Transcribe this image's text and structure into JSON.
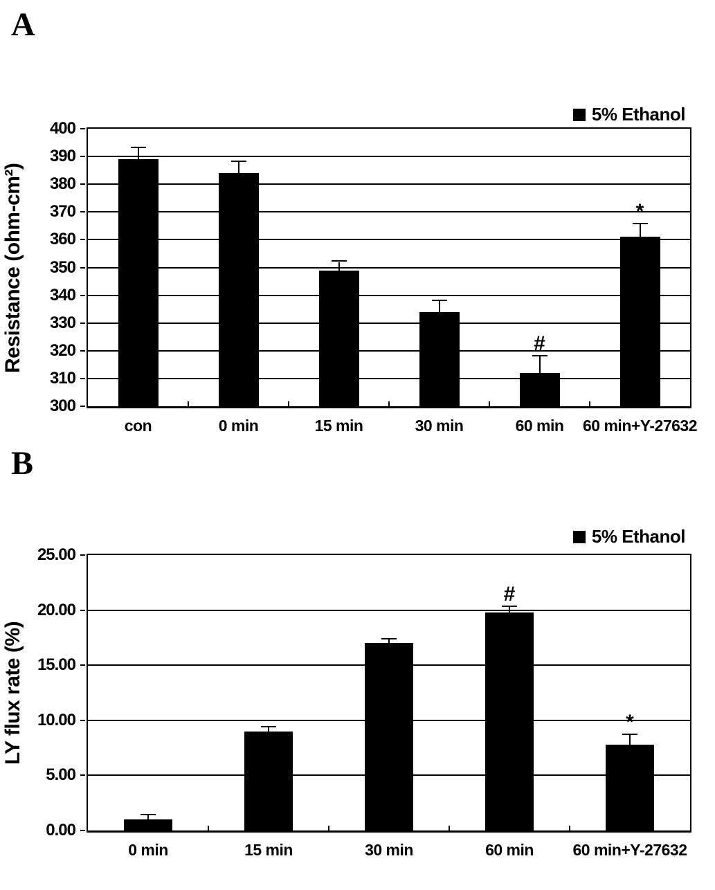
{
  "figure": {
    "panels": [
      {
        "label": "A"
      },
      {
        "label": "B"
      }
    ]
  },
  "chart_data": [
    {
      "type": "bar",
      "panel": "A",
      "title": "",
      "xlabel": "",
      "ylabel": "Resistance (ohm-cm²)",
      "ylim": [
        300,
        400
      ],
      "grid": true,
      "legend": "5% Ethanol",
      "legend_position": "top-right",
      "bar_color": "#000000",
      "yticks": [
        {
          "value": 300,
          "label": "300"
        },
        {
          "value": 310,
          "label": "310"
        },
        {
          "value": 320,
          "label": "320"
        },
        {
          "value": 330,
          "label": "330"
        },
        {
          "value": 340,
          "label": "340"
        },
        {
          "value": 350,
          "label": "350"
        },
        {
          "value": 360,
          "label": "360"
        },
        {
          "value": 370,
          "label": "370"
        },
        {
          "value": 380,
          "label": "380"
        },
        {
          "value": 390,
          "label": "390"
        },
        {
          "value": 400,
          "label": "400"
        }
      ],
      "categories": [
        "con",
        "0 min",
        "15 min",
        "30 min",
        "60 min",
        "60 min+Y-27632"
      ],
      "values": [
        389,
        384,
        349,
        334,
        312,
        361
      ],
      "errors_plus": [
        4,
        4,
        3,
        4,
        6,
        4.5
      ],
      "annotations": [
        "",
        "",
        "",
        "",
        "#",
        "*"
      ]
    },
    {
      "type": "bar",
      "panel": "B",
      "title": "",
      "xlabel": "",
      "ylabel": "LY flux rate (%)",
      "ylim": [
        0,
        25
      ],
      "grid": true,
      "legend": "5% Ethanol",
      "legend_position": "top-right",
      "bar_color": "#000000",
      "yticks": [
        {
          "value": 0,
          "label": "0.00"
        },
        {
          "value": 5,
          "label": "5.00"
        },
        {
          "value": 10,
          "label": "10.00"
        },
        {
          "value": 15,
          "label": "15.00"
        },
        {
          "value": 20,
          "label": "20.00"
        },
        {
          "value": 25,
          "label": "25.00"
        }
      ],
      "categories": [
        "0 min",
        "15 min",
        "30 min",
        "60 min",
        "60 min+Y-27632"
      ],
      "values": [
        1.0,
        9.0,
        17.0,
        19.8,
        7.8
      ],
      "errors_plus": [
        0.4,
        0.35,
        0.35,
        0.5,
        0.9
      ],
      "annotations": [
        "",
        "",
        "",
        "#",
        "*"
      ]
    }
  ]
}
